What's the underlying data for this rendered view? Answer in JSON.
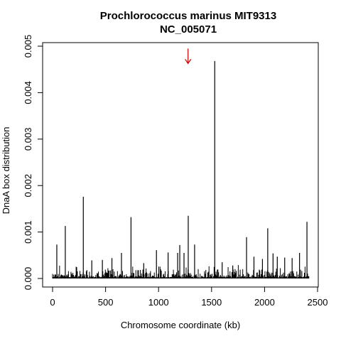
{
  "chart_data": {
    "type": "bar",
    "title": "Prochlorococcus marinus MIT9313",
    "subtitle": "NC_005071",
    "xlabel": "Chromosome coordinate (kb)",
    "ylabel": "DnaA box distribution",
    "xlim": [
      0,
      2500
    ],
    "ylim": [
      0,
      0.005
    ],
    "x_ticks": [
      0,
      500,
      1000,
      1500,
      2000,
      2500
    ],
    "y_ticks": [
      0,
      0.001,
      0.002,
      0.003,
      0.004,
      0.005
    ],
    "y_tick_labels": [
      "0.000",
      "0.001",
      "0.002",
      "0.003",
      "0.004",
      "0.005"
    ],
    "x_tick_labels": [
      "0",
      "500",
      "1000",
      "1500",
      "2000",
      "2500"
    ],
    "grid": false,
    "bar_color": "#000000",
    "marker": {
      "x": 1278,
      "y": 0.00478,
      "color": "#cc0000",
      "shape": "down-arrow"
    },
    "x": [
      40,
      120,
      290,
      370,
      470,
      560,
      650,
      740,
      860,
      980,
      1090,
      1180,
      1200,
      1240,
      1280,
      1340,
      1530,
      1600,
      1700,
      1830,
      1900,
      1980,
      2030,
      2080,
      2120,
      2190,
      2260,
      2330,
      2400
    ],
    "values": [
      0.00073,
      0.00113,
      0.00176,
      0.00039,
      0.0004,
      0.00044,
      0.00055,
      0.00132,
      0.00033,
      0.00061,
      0.00056,
      0.00055,
      0.00072,
      0.00055,
      0.00135,
      0.00073,
      0.00468,
      0.00035,
      0.00028,
      0.00089,
      0.00047,
      0.00042,
      0.00108,
      0.00054,
      0.00047,
      0.00045,
      0.00044,
      0.00055,
      0.00122
    ]
  }
}
